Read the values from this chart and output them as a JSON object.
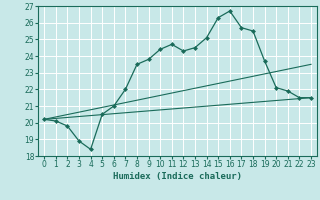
{
  "xlabel": "Humidex (Indice chaleur)",
  "ylabel": "",
  "xlim": [
    -0.5,
    23.5
  ],
  "ylim": [
    18,
    27
  ],
  "yticks": [
    18,
    19,
    20,
    21,
    22,
    23,
    24,
    25,
    26,
    27
  ],
  "xticks": [
    0,
    1,
    2,
    3,
    4,
    5,
    6,
    7,
    8,
    9,
    10,
    11,
    12,
    13,
    14,
    15,
    16,
    17,
    18,
    19,
    20,
    21,
    22,
    23
  ],
  "bg_color": "#c8e8e8",
  "line_color": "#1a6b5a",
  "grid_color": "#ffffff",
  "main_line": {
    "x": [
      0,
      1,
      2,
      3,
      4,
      5,
      6,
      7,
      8,
      9,
      10,
      11,
      12,
      13,
      14,
      15,
      16,
      17,
      18,
      19,
      20,
      21,
      22,
      23
    ],
    "y": [
      20.2,
      20.1,
      19.8,
      18.9,
      18.4,
      20.5,
      21.0,
      22.0,
      23.5,
      23.8,
      24.4,
      24.7,
      24.3,
      24.5,
      25.1,
      26.3,
      26.7,
      25.7,
      25.5,
      23.7,
      22.1,
      21.9,
      21.5,
      21.5
    ]
  },
  "linear1": {
    "x": [
      0,
      23
    ],
    "y": [
      20.2,
      23.5
    ]
  },
  "linear2": {
    "x": [
      0,
      23
    ],
    "y": [
      20.2,
      21.5
    ]
  }
}
